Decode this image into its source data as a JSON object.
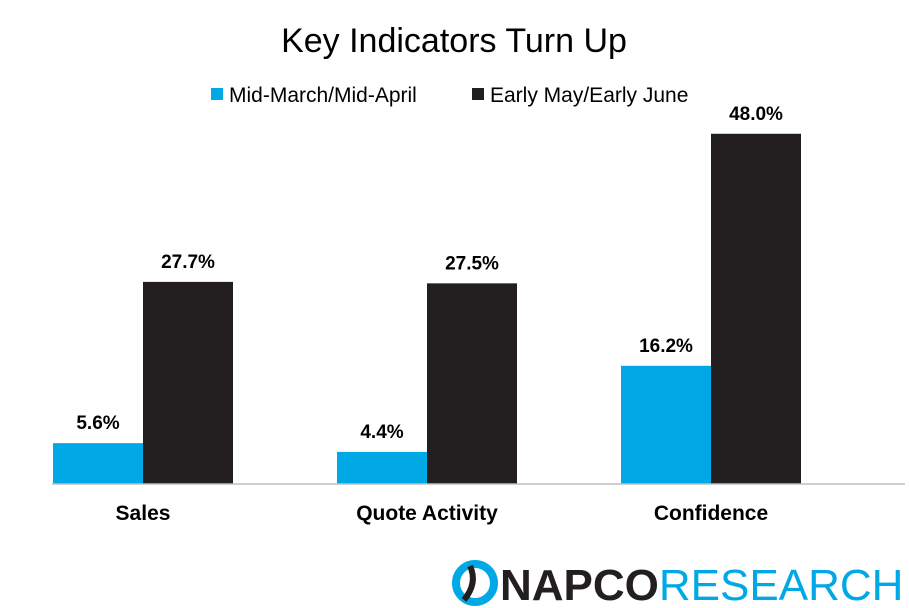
{
  "chart_data": {
    "type": "bar",
    "title": "Key Indicators Turn Up",
    "categories": [
      "Sales",
      "Quote Activity",
      "Confidence"
    ],
    "series": [
      {
        "name": "Mid-March/Mid-April",
        "color": "#00A9E6",
        "values": [
          5.6,
          4.4,
          16.2
        ],
        "labels": [
          "5.6%",
          "4.4%",
          "16.2%"
        ]
      },
      {
        "name": "Early May/Early June",
        "color": "#231F20",
        "values": [
          27.7,
          27.5,
          48.0
        ],
        "labels": [
          "27.7%",
          "27.5%",
          "48.0%"
        ]
      }
    ],
    "ylim": [
      0,
      54
    ],
    "grid": false,
    "legend_position": "top-center",
    "xlabel": "",
    "ylabel": ""
  },
  "logo": {
    "part1": "NAPCO",
    "part2": "RESEARCH",
    "color_dark": "#231F20",
    "color_accent": "#00A9E6"
  }
}
